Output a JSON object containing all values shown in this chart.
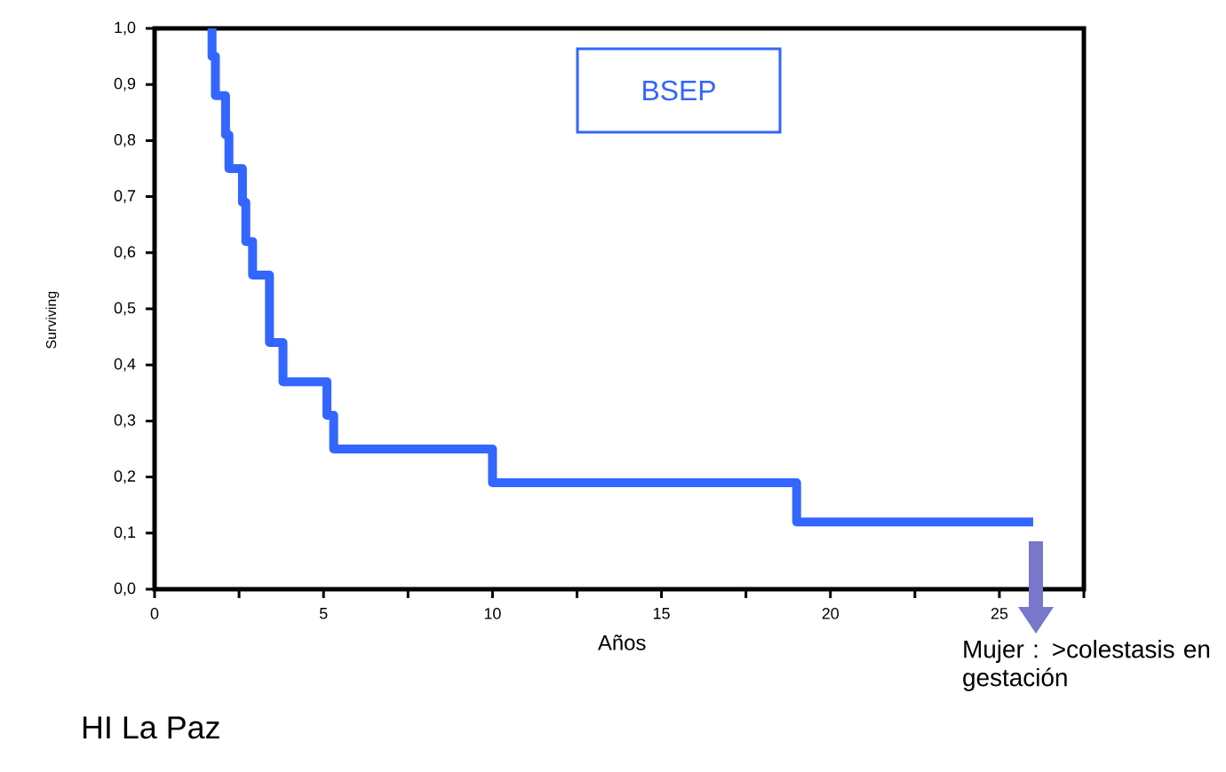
{
  "chart_data": {
    "type": "step",
    "xlabel": "Años",
    "ylabel": "Surviving",
    "annotations": [
      "BSEP",
      "HI La Paz",
      "Mujer : >colestasis en gestación"
    ],
    "series": [
      {
        "color": "#3366ff",
        "line_style": "solid",
        "x": [
          1.7,
          1.7,
          1.8,
          2.1,
          2.2,
          2.6,
          2.7,
          2.9,
          3.4,
          3.8,
          5.1,
          5.3,
          10.0,
          19.0,
          26.0
        ],
        "values": [
          1.0,
          0.95,
          0.88,
          0.81,
          0.75,
          0.69,
          0.62,
          0.56,
          0.44,
          0.37,
          0.31,
          0.25,
          0.19,
          0.12,
          0.12
        ]
      }
    ],
    "marker": "none",
    "xlim": [
      0,
      27.5
    ],
    "ylim": [
      0,
      1.0
    ],
    "xticks": [
      0,
      {
        "value": 2.5,
        "label": null
      },
      5,
      {
        "value": 7.5,
        "label": null
      },
      10,
      {
        "value": 12.5,
        "label": null
      },
      15,
      {
        "value": 17.5,
        "label": null
      },
      20,
      {
        "value": 22.5,
        "label": null
      },
      25,
      {
        "value": 27.5,
        "label": null
      }
    ],
    "yticks": [
      {
        "value": 0,
        "label": "0,0"
      },
      {
        "value": 0.1,
        "label": "0,1"
      },
      {
        "value": 0.2,
        "label": "0,2"
      },
      {
        "value": 0.3,
        "label": "0,3"
      },
      {
        "value": 0.4,
        "label": "0,4"
      },
      {
        "value": 0.5,
        "label": "0,5"
      },
      {
        "value": 0.6,
        "label": "0,6"
      },
      {
        "value": 0.7,
        "label": "0,7"
      },
      {
        "value": 0.8,
        "label": "0,8"
      },
      {
        "value": 0.9,
        "label": "0,9"
      },
      {
        "value": 1.0,
        "label": "1,0"
      }
    ]
  }
}
